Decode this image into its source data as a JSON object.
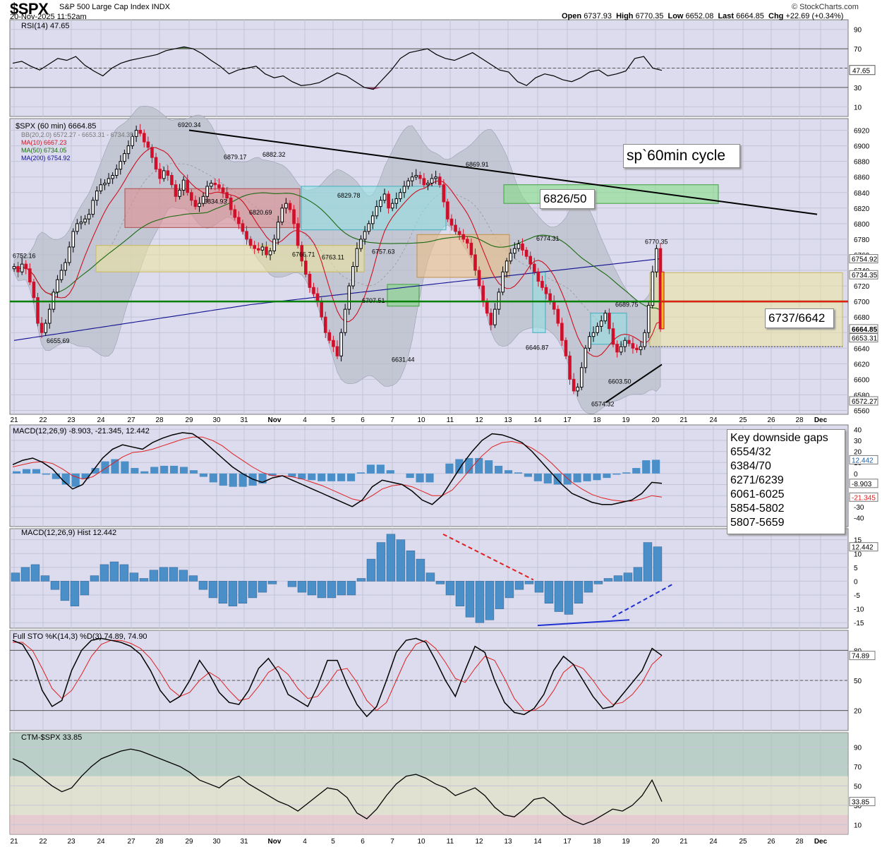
{
  "header": {
    "symbol": "$SPX",
    "name": "S&P 500 Large Cap Index",
    "exchange": "INDX",
    "date": "20-Nov-2025 11:52am",
    "brand": "© StockCharts.com",
    "open_label": "Open",
    "open": "6737.93",
    "high_label": "High",
    "high": "6770.35",
    "low_label": "Low",
    "low": "6652.08",
    "last_label": "Last",
    "last": "6664.85",
    "chg_label": "Chg",
    "chg": "+22.69 (+0.34%)"
  },
  "annotations": {
    "cycle": "sp`60min cycle",
    "resistance": "6826/50",
    "support": "6737/6642",
    "gaps_title": "Key downside gaps",
    "gaps": [
      "6554/32",
      "6384/70",
      "6271/6239",
      "6061-6025",
      "5854-5802",
      "5807-5659"
    ]
  },
  "colors": {
    "bg": "#dcdcee",
    "candle_up": "#000000",
    "candle_down": "#d0102a",
    "ma10": "#d01020",
    "ma50": "#1a6a10",
    "ma200": "#101090",
    "trend": "#000000",
    "support_line": "#008000",
    "macd_hist": "#4a8fc8",
    "bb_fill": "#b8bcc8"
  },
  "chart_data": [
    {
      "type": "line",
      "title": "RSI(14) 47.65",
      "yticks": [
        10,
        30,
        50,
        70,
        90
      ],
      "ylim": [
        0,
        100
      ],
      "last_label": "47.65",
      "rsi": [
        55,
        57,
        52,
        48,
        54,
        60,
        58,
        62,
        53,
        47,
        42,
        50,
        55,
        58,
        60,
        62,
        64,
        68,
        70,
        72,
        70,
        65,
        58,
        52,
        44,
        48,
        50,
        52,
        44,
        40,
        42,
        36,
        32,
        33,
        35,
        40,
        45,
        42,
        36,
        30,
        28,
        38,
        48,
        60,
        66,
        68,
        70,
        64,
        60,
        58,
        62,
        66,
        60,
        54,
        48,
        46,
        36,
        32,
        40,
        44,
        42,
        38,
        36,
        40,
        46,
        48,
        42,
        44,
        47,
        60,
        62,
        50,
        47.65
      ]
    },
    {
      "type": "candlestick",
      "title": "$SPX (60 min) 6664.85",
      "legend": [
        "BB(20,2.0) 6572.27 - 6653.31 - 6734.35",
        "MA(10) 6667.23",
        "MA(50) 6734.05",
        "MA(200) 6754.92"
      ],
      "ylim": [
        6555,
        6935
      ],
      "yticks": [
        6560,
        6580,
        6600,
        6620,
        6640,
        6660,
        6680,
        6700,
        6720,
        6740,
        6760,
        6780,
        6800,
        6820,
        6840,
        6860,
        6880,
        6900,
        6920
      ],
      "x_labels": [
        "21",
        "22",
        "23",
        "24",
        "27",
        "28",
        "29",
        "30",
        "31",
        "Nov",
        "4",
        "5",
        "6",
        "7",
        "10",
        "11",
        "12",
        "13",
        "14",
        "17",
        "18",
        "19",
        "20",
        "21",
        "24",
        "25",
        "26",
        "28",
        "Dec"
      ],
      "price_labels": [
        {
          "text": "6920.34",
          "value": 6920.34
        },
        {
          "text": "6879.17",
          "value": 6879.17
        },
        {
          "text": "6882.32",
          "value": 6882.32
        },
        {
          "text": "6869.91",
          "value": 6869.91
        },
        {
          "text": "6834.93",
          "value": 6834.93
        },
        {
          "text": "6829.78",
          "value": 6829.78
        },
        {
          "text": "6820.69",
          "value": 6820.69
        },
        {
          "text": "6774.31",
          "value": 6774.31
        },
        {
          "text": "6770.35",
          "value": 6770.35
        },
        {
          "text": "6766.71",
          "value": 6766.71
        },
        {
          "text": "6763.11",
          "value": 6763.11
        },
        {
          "text": "6757.63",
          "value": 6757.63
        },
        {
          "text": "6752.16",
          "value": 6752.16
        },
        {
          "text": "6707.51",
          "value": 6707.51
        },
        {
          "text": "6689.75",
          "value": 6689.75
        },
        {
          "text": "6655.69",
          "value": 6655.69
        },
        {
          "text": "6646.87",
          "value": 6646.87
        },
        {
          "text": "6631.44",
          "value": 6631.44
        },
        {
          "text": "6603.50",
          "value": 6603.5
        },
        {
          "text": "6574.32",
          "value": 6574.32
        }
      ],
      "right_labels": [
        {
          "text": "6754.92",
          "value": 6754.92
        },
        {
          "text": "6734.35",
          "value": 6734.35
        },
        {
          "text": "6664.85",
          "value": 6664.85
        },
        {
          "text": "6653.31",
          "value": 6653.31
        },
        {
          "text": "6572.27",
          "value": 6572.27
        }
      ],
      "close": [
        6745,
        6738,
        6748,
        6742,
        6725,
        6705,
        6672,
        6660,
        6672,
        6690,
        6712,
        6728,
        6740,
        6750,
        6770,
        6790,
        6800,
        6802,
        6806,
        6812,
        6830,
        6842,
        6850,
        6852,
        6858,
        6862,
        6870,
        6880,
        6890,
        6900,
        6912,
        6920,
        6916,
        6905,
        6898,
        6885,
        6870,
        6858,
        6868,
        6862,
        6850,
        6835,
        6843,
        6856,
        6840,
        6830,
        6822,
        6826,
        6835,
        6848,
        6852,
        6850,
        6846,
        6840,
        6833,
        6818,
        6808,
        6800,
        6790,
        6780,
        6772,
        6768,
        6766,
        6770,
        6760,
        6765,
        6780,
        6802,
        6820,
        6826,
        6818,
        6800,
        6772,
        6752,
        6735,
        6718,
        6710,
        6700,
        6680,
        6660,
        6650,
        6642,
        6630,
        6660,
        6690,
        6720,
        6745,
        6768,
        6780,
        6790,
        6800,
        6810,
        6822,
        6830,
        6838,
        6820,
        6826,
        6832,
        6840,
        6848,
        6855,
        6860,
        6862,
        6858,
        6850,
        6852,
        6858,
        6860,
        6850,
        6828,
        6806,
        6798,
        6790,
        6786,
        6780,
        6775,
        6760,
        6740,
        6720,
        6700,
        6685,
        6670,
        6690,
        6712,
        6738,
        6752,
        6762,
        6768,
        6774,
        6766,
        6758,
        6748,
        6738,
        6726,
        6718,
        6710,
        6700,
        6690,
        6672,
        6650,
        6630,
        6600,
        6585,
        6590,
        6615,
        6640,
        6655,
        6660,
        6668,
        6675,
        6685,
        6665,
        6645,
        6635,
        6642,
        6650,
        6646,
        6640,
        6638,
        6642,
        6660,
        6695,
        6738,
        6768,
        6664.85
      ]
    },
    {
      "type": "line",
      "title": "MACD(12,26,9) -8.903, -21.345, 12.442",
      "yticks": [
        -40,
        -30,
        -20,
        -10,
        0,
        10,
        20,
        30,
        40
      ],
      "ylim": [
        -48,
        44
      ],
      "right_labels": [
        "12.442",
        "-8.903",
        "-21.345"
      ],
      "macd": [
        8,
        12,
        14,
        10,
        4,
        -6,
        -14,
        -10,
        2,
        14,
        22,
        26,
        24,
        22,
        28,
        32,
        35,
        37,
        36,
        30,
        22,
        14,
        6,
        0,
        -5,
        -8,
        -4,
        -2,
        -6,
        -10,
        -14,
        -18,
        -22,
        -26,
        -30,
        -24,
        -12,
        -6,
        -8,
        -10,
        -16,
        -24,
        -28,
        -20,
        -6,
        8,
        20,
        30,
        36,
        35,
        32,
        28,
        20,
        10,
        0,
        -10,
        -18,
        -22,
        -26,
        -28,
        -28,
        -26,
        -24,
        -18,
        -8,
        -8.903
      ],
      "signal": [
        6,
        8,
        10,
        11,
        9,
        4,
        -2,
        -5,
        -3,
        3,
        9,
        15,
        19,
        20,
        22,
        25,
        28,
        31,
        33,
        33,
        30,
        25,
        18,
        12,
        6,
        1,
        -2,
        -2,
        -3,
        -5,
        -8,
        -11,
        -15,
        -19,
        -23,
        -25,
        -20,
        -14,
        -11,
        -10,
        -12,
        -16,
        -20,
        -20,
        -15,
        -5,
        6,
        16,
        24,
        28,
        29,
        27,
        23,
        17,
        9,
        0,
        -8,
        -14,
        -19,
        -22,
        -24,
        -25,
        -25,
        -23,
        -20,
        -21.345
      ],
      "hist": [
        2,
        4,
        4,
        -1,
        -5,
        -10,
        -12,
        -5,
        5,
        11,
        13,
        11,
        5,
        2,
        6,
        7,
        7,
        6,
        3,
        -3,
        -8,
        -11,
        -12,
        -12,
        -11,
        -9,
        -2,
        0,
        -3,
        -5,
        -6,
        -7,
        -7,
        -7,
        -7,
        1,
        8,
        8,
        3,
        0,
        -4,
        -8,
        -8,
        0,
        9,
        13,
        14,
        14,
        12,
        7,
        3,
        1,
        -3,
        -7,
        -9,
        -10,
        -10,
        -8,
        -7,
        -6,
        -4,
        -1,
        1,
        5,
        12,
        12.442
      ]
    },
    {
      "type": "bar",
      "title": "MACD(12,26,9) Hist 12.442",
      "yticks": [
        -15,
        -10,
        -5,
        0,
        5,
        10,
        15
      ],
      "ylim": [
        -17,
        19
      ],
      "last_label": "12.442",
      "hist": [
        3,
        5,
        6,
        2,
        -3,
        -7,
        -9,
        -5,
        2,
        6,
        7,
        6,
        3,
        1,
        4,
        5,
        5,
        4,
        2,
        -3,
        -6,
        -8,
        -9,
        -8,
        -6,
        -4,
        -1,
        0,
        -2,
        -4,
        -5,
        -6,
        -6,
        -5,
        -5,
        1,
        8,
        14,
        17,
        15,
        11,
        8,
        3,
        -1,
        -5,
        -9,
        -13,
        -15,
        -14,
        -10,
        -6,
        -3,
        -1,
        -4,
        -8,
        -11,
        -12,
        -8,
        -4,
        -1,
        1,
        2,
        3,
        5,
        14,
        12.442
      ]
    },
    {
      "type": "line",
      "title": "Full STO %K(14,3) %D(3) 74.89, 74.90",
      "yticks": [
        20,
        50,
        80
      ],
      "ylim": [
        0,
        100
      ],
      "last_label": "74.89",
      "k": [
        90,
        86,
        70,
        40,
        24,
        30,
        60,
        80,
        90,
        92,
        90,
        88,
        84,
        76,
        60,
        40,
        28,
        34,
        50,
        70,
        56,
        38,
        28,
        26,
        40,
        62,
        72,
        58,
        36,
        30,
        24,
        44,
        70,
        70,
        46,
        26,
        14,
        24,
        50,
        78,
        90,
        92,
        88,
        70,
        50,
        34,
        60,
        84,
        78,
        50,
        28,
        18,
        16,
        22,
        36,
        60,
        74,
        66,
        50,
        34,
        22,
        24,
        36,
        48,
        60,
        82,
        74.89
      ],
      "d": [
        88,
        88,
        80,
        62,
        42,
        32,
        40,
        56,
        74,
        86,
        90,
        90,
        87,
        82,
        72,
        58,
        42,
        34,
        38,
        50,
        58,
        52,
        40,
        30,
        32,
        44,
        58,
        64,
        56,
        42,
        32,
        34,
        46,
        60,
        62,
        48,
        30,
        20,
        28,
        50,
        72,
        86,
        90,
        82,
        68,
        52,
        48,
        62,
        74,
        70,
        52,
        32,
        20,
        20,
        26,
        40,
        58,
        66,
        62,
        50,
        36,
        26,
        28,
        36,
        48,
        66,
        74.9
      ]
    },
    {
      "type": "line",
      "title": "CTM-$SPX 33.85",
      "yticks": [
        10,
        30,
        50,
        70,
        90
      ],
      "ylim": [
        0,
        105
      ],
      "last_label": "33.85",
      "ctm": [
        78,
        74,
        66,
        58,
        50,
        44,
        48,
        60,
        70,
        78,
        82,
        86,
        88,
        86,
        82,
        78,
        74,
        70,
        64,
        56,
        52,
        48,
        56,
        60,
        52,
        46,
        40,
        34,
        30,
        24,
        32,
        40,
        48,
        46,
        38,
        22,
        16,
        26,
        40,
        52,
        60,
        62,
        58,
        52,
        48,
        40,
        44,
        48,
        40,
        28,
        20,
        18,
        26,
        36,
        38,
        30,
        20,
        14,
        10,
        14,
        20,
        26,
        24,
        30,
        40,
        56,
        33.85
      ]
    }
  ]
}
